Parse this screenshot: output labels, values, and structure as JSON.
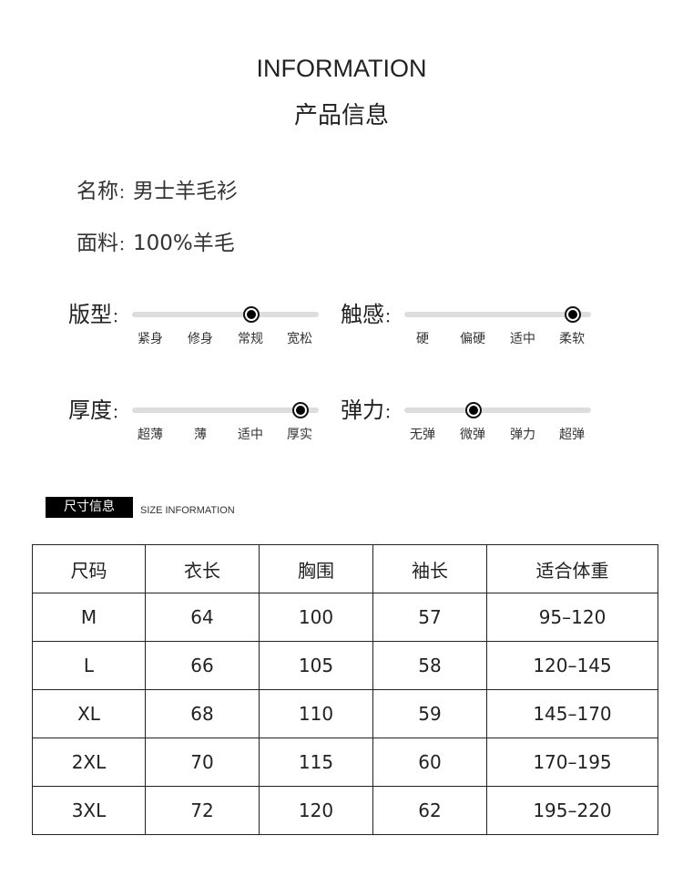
{
  "header": {
    "title_en": "INFORMATION",
    "title_cn": "产品信息"
  },
  "info": [
    {
      "label": "名称",
      "value": "男士羊毛衫"
    },
    {
      "label": "面料",
      "value": "100%羊毛"
    }
  ],
  "sliders": [
    {
      "label": "版型",
      "options": [
        "紧身",
        "修身",
        "常规",
        "宽松"
      ],
      "selected": 2
    },
    {
      "label": "触感",
      "options": [
        "硬",
        "偏硬",
        "适中",
        "柔软"
      ],
      "selected": 3
    },
    {
      "label": "厚度",
      "options": [
        "超薄",
        "薄",
        "适中",
        "厚实"
      ],
      "selected": 3
    },
    {
      "label": "弹力",
      "options": [
        "无弹",
        "微弹",
        "弹力",
        "超弹"
      ],
      "selected": 1
    }
  ],
  "size_section": {
    "badge": "尺寸信息",
    "subtitle": "SIZE INFORMATION"
  },
  "size_table": {
    "headers": [
      "尺码",
      "衣长",
      "胸围",
      "袖长",
      "适合体重"
    ],
    "rows": [
      [
        "M",
        "64",
        "100",
        "57",
        "95–120"
      ],
      [
        "L",
        "66",
        "105",
        "58",
        "120–145"
      ],
      [
        "XL",
        "68",
        "110",
        "59",
        "145–170"
      ],
      [
        "2XL",
        "70",
        "115",
        "60",
        "170–195"
      ],
      [
        "3XL",
        "72",
        "120",
        "62",
        "195–220"
      ]
    ]
  }
}
